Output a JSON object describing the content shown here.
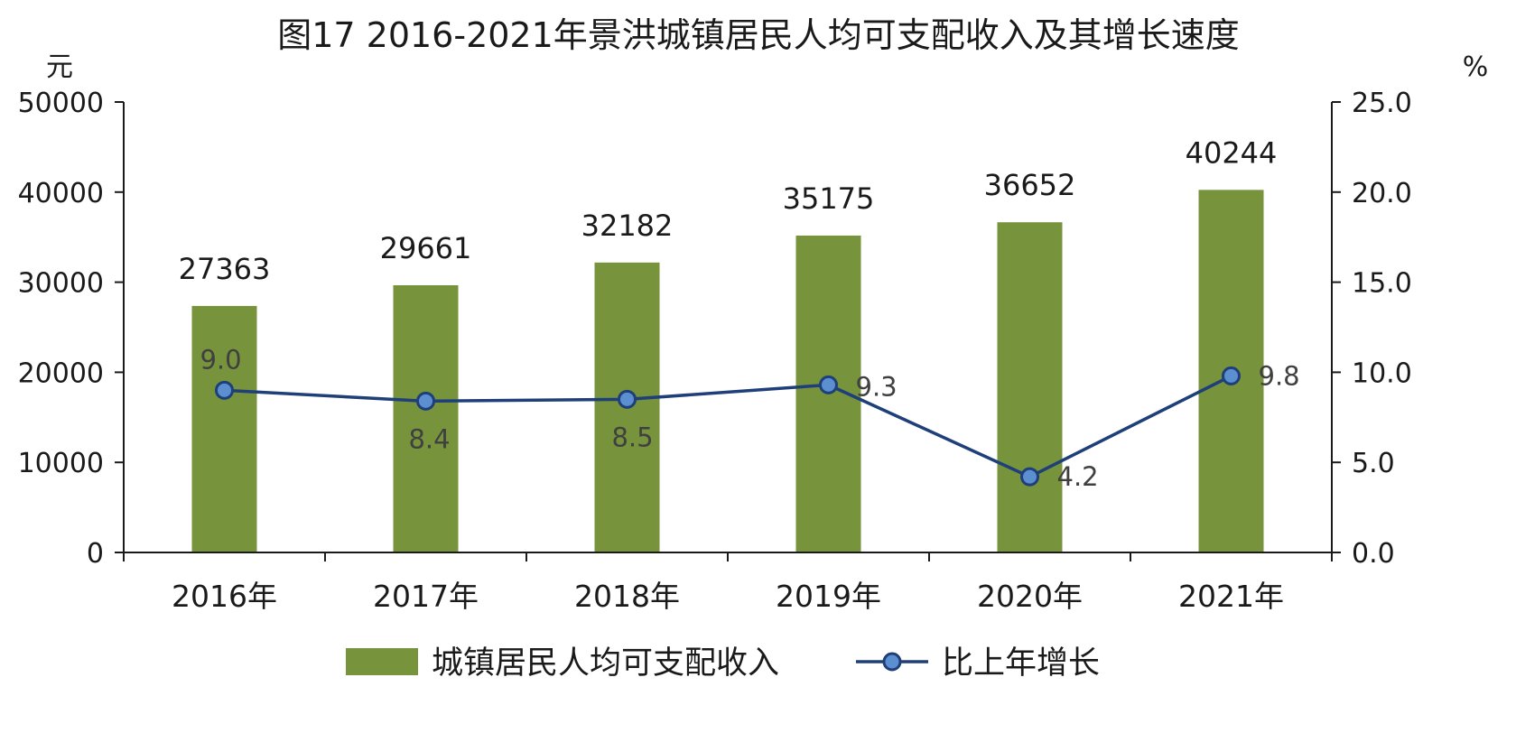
{
  "chart_data": {
    "type": "bar+line",
    "title": "图17  2016-2021年景洪城镇居民人均可支配收入及其增长速度",
    "categories": [
      "2016年",
      "2017年",
      "2018年",
      "2019年",
      "2020年",
      "2021年"
    ],
    "series": [
      {
        "name": "城镇居民人均可支配收入",
        "type": "bar",
        "axis": "left",
        "color": "#77933c",
        "values": [
          27363,
          29661,
          32182,
          35175,
          36652,
          40244
        ],
        "labels": [
          "27363",
          "29661",
          "32182",
          "35175",
          "36652",
          "40244"
        ]
      },
      {
        "name": "比上年增长",
        "type": "line",
        "axis": "right",
        "color": "#1f3f7a",
        "marker_color": "#5b8fd0",
        "values": [
          9.0,
          8.4,
          8.5,
          9.3,
          4.2,
          9.8
        ],
        "labels": [
          "9.0",
          "8.4",
          "8.5",
          "9.3",
          "4.2",
          "9.8"
        ]
      }
    ],
    "y_left": {
      "unit": "元",
      "ylim": [
        0,
        50000
      ],
      "ticks": [
        "0",
        "10000",
        "20000",
        "30000",
        "40000",
        "50000"
      ]
    },
    "y_right": {
      "unit": "%",
      "ylim": [
        0,
        25
      ],
      "ticks": [
        "0.0",
        "5.0",
        "10.0",
        "15.0",
        "20.0",
        "25.0"
      ]
    },
    "grid": false,
    "legend_position": "bottom"
  }
}
